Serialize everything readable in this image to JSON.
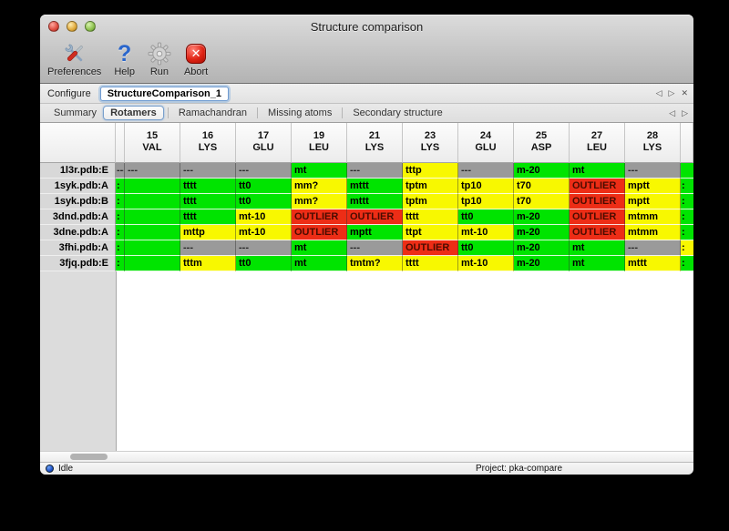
{
  "window": {
    "title": "Structure comparison"
  },
  "toolbar": {
    "buttons": [
      {
        "label": "Preferences"
      },
      {
        "label": "Help"
      },
      {
        "label": "Run"
      },
      {
        "label": "Abort"
      }
    ]
  },
  "configure": {
    "label": "Configure",
    "value": "StructureComparison_1"
  },
  "nav": {
    "back": "◁",
    "forward": "▷",
    "close": "✕"
  },
  "tabs": {
    "items": [
      "Summary",
      "Rotamers",
      "Ramachandran",
      "Missing atoms",
      "Secondary structure"
    ],
    "active": "Rotamers"
  },
  "table": {
    "colors": {
      "g": "#00e400",
      "y": "#f8f800",
      "r": "#ed2d16",
      "x": "#9a9a9a"
    },
    "columns": [
      [
        "15",
        "VAL"
      ],
      [
        "16",
        "LYS"
      ],
      [
        "17",
        "GLU"
      ],
      [
        "19",
        "LEU"
      ],
      [
        "21",
        "LYS"
      ],
      [
        "23",
        "LYS"
      ],
      [
        "24",
        "GLU"
      ],
      [
        "25",
        "ASP"
      ],
      [
        "27",
        "LEU"
      ],
      [
        "28",
        "LYS"
      ]
    ],
    "rows": [
      {
        "label": "1l3r.pdb:E",
        "left": [
          "x",
          "---"
        ],
        "cells": [
          [
            "x",
            "---"
          ],
          [
            "x",
            "---"
          ],
          [
            "x",
            "---"
          ],
          [
            "g",
            "mt"
          ],
          [
            "x",
            "---"
          ],
          [
            "y",
            "tttp"
          ],
          [
            "x",
            "---"
          ],
          [
            "g",
            "m-20"
          ],
          [
            "g",
            "mt"
          ],
          [
            "x",
            "---"
          ]
        ],
        "right": [
          "g",
          ""
        ]
      },
      {
        "label": "1syk.pdb:A",
        "left": [
          "g",
          ":"
        ],
        "cells": [
          [
            "g",
            ""
          ],
          [
            "g",
            "tttt"
          ],
          [
            "g",
            "tt0"
          ],
          [
            "y",
            "mm?"
          ],
          [
            "g",
            "mttt"
          ],
          [
            "y",
            "tptm"
          ],
          [
            "y",
            "tp10"
          ],
          [
            "y",
            "t70"
          ],
          [
            "r",
            "OUTLIER"
          ],
          [
            "y",
            "mptt"
          ]
        ],
        "right": [
          "g",
          ":"
        ]
      },
      {
        "label": "1syk.pdb:B",
        "left": [
          "g",
          ":"
        ],
        "cells": [
          [
            "g",
            ""
          ],
          [
            "g",
            "tttt"
          ],
          [
            "g",
            "tt0"
          ],
          [
            "y",
            "mm?"
          ],
          [
            "g",
            "mttt"
          ],
          [
            "y",
            "tptm"
          ],
          [
            "y",
            "tp10"
          ],
          [
            "y",
            "t70"
          ],
          [
            "r",
            "OUTLIER"
          ],
          [
            "y",
            "mptt"
          ]
        ],
        "right": [
          "g",
          ":"
        ]
      },
      {
        "label": "3dnd.pdb:A",
        "left": [
          "g",
          ":"
        ],
        "cells": [
          [
            "g",
            ""
          ],
          [
            "g",
            "tttt"
          ],
          [
            "y",
            "mt-10"
          ],
          [
            "r",
            "OUTLIER"
          ],
          [
            "r",
            "OUTLIER"
          ],
          [
            "y",
            "tttt"
          ],
          [
            "g",
            "tt0"
          ],
          [
            "g",
            "m-20"
          ],
          [
            "r",
            "OUTLIER"
          ],
          [
            "y",
            "mtmm"
          ]
        ],
        "right": [
          "g",
          ":"
        ]
      },
      {
        "label": "3dne.pdb:A",
        "left": [
          "g",
          ":"
        ],
        "cells": [
          [
            "g",
            ""
          ],
          [
            "y",
            "mttp"
          ],
          [
            "y",
            "mt-10"
          ],
          [
            "r",
            "OUTLIER"
          ],
          [
            "g",
            "mptt"
          ],
          [
            "y",
            "ttpt"
          ],
          [
            "y",
            "mt-10"
          ],
          [
            "g",
            "m-20"
          ],
          [
            "r",
            "OUTLIER"
          ],
          [
            "y",
            "mtmm"
          ]
        ],
        "right": [
          "g",
          ":"
        ]
      },
      {
        "label": "3fhi.pdb:A",
        "left": [
          "g",
          ":"
        ],
        "cells": [
          [
            "g",
            ""
          ],
          [
            "x",
            "---"
          ],
          [
            "x",
            "---"
          ],
          [
            "g",
            "mt"
          ],
          [
            "x",
            "---"
          ],
          [
            "r",
            "OUTLIER"
          ],
          [
            "g",
            "tt0"
          ],
          [
            "g",
            "m-20"
          ],
          [
            "g",
            "mt"
          ],
          [
            "x",
            "---"
          ]
        ],
        "right": [
          "y",
          ":"
        ]
      },
      {
        "label": "3fjq.pdb:E",
        "left": [
          "g",
          ":"
        ],
        "cells": [
          [
            "g",
            ""
          ],
          [
            "y",
            "tttm"
          ],
          [
            "g",
            "tt0"
          ],
          [
            "g",
            "mt"
          ],
          [
            "y",
            "tmtm?"
          ],
          [
            "y",
            "tttt"
          ],
          [
            "y",
            "mt-10"
          ],
          [
            "g",
            "m-20"
          ],
          [
            "g",
            "mt"
          ],
          [
            "y",
            "mttt"
          ]
        ],
        "right": [
          "g",
          ":"
        ]
      }
    ]
  },
  "statusbar": {
    "state": "Idle",
    "project": "Project: pka-compare"
  }
}
